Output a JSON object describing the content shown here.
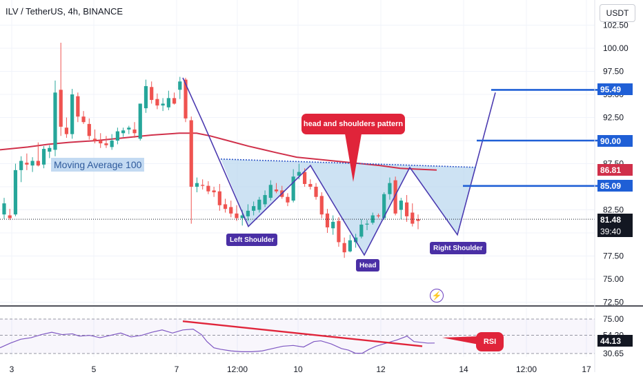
{
  "title": "ILV / TetherUS, 4h, BINANCE",
  "currency": "USDT",
  "ma_label": "Moving Average 100",
  "pattern_label": "head and shoulders pattern",
  "labels": {
    "left_shoulder": "Left Shoulder",
    "head": "Head",
    "right_shoulder": "Right Shoulder",
    "rsi": "RSI"
  },
  "price_axis": [
    "102.50",
    "100.00",
    "97.50",
    "95.00",
    "92.50",
    "90.00",
    "87.50",
    "85.00",
    "82.50",
    "80.00",
    "77.50",
    "75.00",
    "72.50"
  ],
  "rsi_axis": [
    "75.00",
    "54.20",
    "30.65"
  ],
  "time_axis": [
    "3",
    "5",
    "7",
    "12:00",
    "10",
    "12",
    "14",
    "12:00",
    "17"
  ],
  "markers": {
    "target": "95.49",
    "level_90": "90.00",
    "ma": "86.81",
    "level_85": "85.09",
    "last": "81.48",
    "countdown": "39:40",
    "rsi_last": "44.13"
  },
  "colors": {
    "up": "#26a69a",
    "down": "#ef5350",
    "ma": "#d0304a",
    "pattern": "#4b3ab0",
    "fill": "#bcd8ef",
    "level": "#1f5fd6",
    "rsi": "#7e57c2"
  },
  "chart_data": {
    "type": "candlestick",
    "title": "ILV / TetherUS, 4h, BINANCE",
    "ylim": [
      72.5,
      103.5
    ],
    "candles": [
      {
        "o": 82.0,
        "h": 83.8,
        "l": 81.5,
        "c": 83.2
      },
      {
        "o": 81.9,
        "h": 82.6,
        "l": 81.4,
        "c": 81.6
      },
      {
        "o": 82.0,
        "h": 87.5,
        "l": 81.8,
        "c": 86.8
      },
      {
        "o": 86.8,
        "h": 88.3,
        "l": 85.5,
        "c": 87.8
      },
      {
        "o": 87.6,
        "h": 88.6,
        "l": 86.8,
        "c": 87.4
      },
      {
        "o": 87.3,
        "h": 88.2,
        "l": 86.6,
        "c": 87.8
      },
      {
        "o": 87.8,
        "h": 89.8,
        "l": 87.2,
        "c": 87.3
      },
      {
        "o": 87.4,
        "h": 89.4,
        "l": 87.0,
        "c": 89.1
      },
      {
        "o": 88.8,
        "h": 89.5,
        "l": 88.1,
        "c": 89.2
      },
      {
        "o": 89.0,
        "h": 96.5,
        "l": 88.3,
        "c": 95.2
      },
      {
        "o": 95.5,
        "h": 100.6,
        "l": 90.5,
        "c": 91.5
      },
      {
        "o": 91.4,
        "h": 92.5,
        "l": 90.3,
        "c": 90.7
      },
      {
        "o": 90.7,
        "h": 95.6,
        "l": 90.2,
        "c": 95.0
      },
      {
        "o": 94.8,
        "h": 95.2,
        "l": 92.0,
        "c": 92.6
      },
      {
        "o": 92.6,
        "h": 93.2,
        "l": 91.8,
        "c": 92.0
      },
      {
        "o": 91.8,
        "h": 92.4,
        "l": 90.1,
        "c": 90.5
      },
      {
        "o": 90.2,
        "h": 91.2,
        "l": 89.7,
        "c": 90.0
      },
      {
        "o": 90.0,
        "h": 90.8,
        "l": 89.2,
        "c": 89.7
      },
      {
        "o": 89.7,
        "h": 90.5,
        "l": 89.2,
        "c": 89.5
      },
      {
        "o": 89.3,
        "h": 90.7,
        "l": 89.0,
        "c": 90.0
      },
      {
        "o": 90.0,
        "h": 91.4,
        "l": 89.6,
        "c": 91.0
      },
      {
        "o": 90.8,
        "h": 91.4,
        "l": 90.4,
        "c": 91.1
      },
      {
        "o": 91.2,
        "h": 91.6,
        "l": 90.7,
        "c": 91.4
      },
      {
        "o": 91.2,
        "h": 92.0,
        "l": 90.3,
        "c": 90.8
      },
      {
        "o": 90.2,
        "h": 94.0,
        "l": 90.0,
        "c": 94.0
      },
      {
        "o": 93.5,
        "h": 96.6,
        "l": 93.0,
        "c": 95.9
      },
      {
        "o": 95.8,
        "h": 96.4,
        "l": 94.0,
        "c": 94.4
      },
      {
        "o": 94.5,
        "h": 95.1,
        "l": 93.4,
        "c": 93.8
      },
      {
        "o": 93.8,
        "h": 94.6,
        "l": 93.2,
        "c": 94.0
      },
      {
        "o": 93.6,
        "h": 95.4,
        "l": 93.3,
        "c": 94.6
      },
      {
        "o": 94.6,
        "h": 95.2,
        "l": 93.9,
        "c": 94.0
      },
      {
        "o": 95.5,
        "h": 96.9,
        "l": 94.5,
        "c": 96.4
      },
      {
        "o": 96.6,
        "h": 96.8,
        "l": 92.0,
        "c": 92.4
      },
      {
        "o": 92.2,
        "h": 92.6,
        "l": 81.0,
        "c": 85.0
      },
      {
        "o": 85.0,
        "h": 86.0,
        "l": 84.4,
        "c": 85.4
      },
      {
        "o": 85.2,
        "h": 85.8,
        "l": 84.7,
        "c": 85.1
      },
      {
        "o": 85.1,
        "h": 85.6,
        "l": 84.2,
        "c": 84.5
      },
      {
        "o": 84.6,
        "h": 85.0,
        "l": 83.9,
        "c": 84.4
      },
      {
        "o": 84.5,
        "h": 85.3,
        "l": 82.4,
        "c": 83.0
      },
      {
        "o": 83.1,
        "h": 83.7,
        "l": 82.2,
        "c": 82.6
      },
      {
        "o": 82.8,
        "h": 83.5,
        "l": 81.7,
        "c": 82.1
      },
      {
        "o": 82.1,
        "h": 83.0,
        "l": 81.3,
        "c": 81.6
      },
      {
        "o": 81.6,
        "h": 82.5,
        "l": 80.8,
        "c": 81.9
      },
      {
        "o": 81.8,
        "h": 83.1,
        "l": 81.3,
        "c": 82.4
      },
      {
        "o": 82.4,
        "h": 83.4,
        "l": 81.9,
        "c": 82.9
      },
      {
        "o": 82.5,
        "h": 83.9,
        "l": 82.2,
        "c": 83.6
      },
      {
        "o": 83.1,
        "h": 84.6,
        "l": 82.8,
        "c": 84.1
      },
      {
        "o": 83.8,
        "h": 85.7,
        "l": 83.5,
        "c": 85.2
      },
      {
        "o": 84.7,
        "h": 85.4,
        "l": 84.3,
        "c": 84.5
      },
      {
        "o": 84.6,
        "h": 85.1,
        "l": 83.7,
        "c": 83.9
      },
      {
        "o": 83.9,
        "h": 84.3,
        "l": 82.9,
        "c": 83.3
      },
      {
        "o": 83.5,
        "h": 86.9,
        "l": 83.3,
        "c": 86.1
      },
      {
        "o": 86.2,
        "h": 87.5,
        "l": 85.8,
        "c": 86.6
      },
      {
        "o": 86.6,
        "h": 87.0,
        "l": 85.0,
        "c": 85.3
      },
      {
        "o": 85.3,
        "h": 85.8,
        "l": 84.7,
        "c": 85.0
      },
      {
        "o": 85.0,
        "h": 85.4,
        "l": 83.6,
        "c": 83.9
      },
      {
        "o": 84.0,
        "h": 84.4,
        "l": 81.6,
        "c": 82.0
      },
      {
        "o": 82.1,
        "h": 82.6,
        "l": 80.0,
        "c": 80.6
      },
      {
        "o": 80.5,
        "h": 81.9,
        "l": 79.8,
        "c": 81.2
      },
      {
        "o": 81.3,
        "h": 81.7,
        "l": 78.5,
        "c": 79.0
      },
      {
        "o": 78.9,
        "h": 79.5,
        "l": 77.3,
        "c": 77.9
      },
      {
        "o": 78.0,
        "h": 79.8,
        "l": 77.9,
        "c": 79.2
      },
      {
        "o": 79.0,
        "h": 79.9,
        "l": 78.4,
        "c": 79.5
      },
      {
        "o": 79.6,
        "h": 81.5,
        "l": 79.4,
        "c": 80.9
      },
      {
        "o": 80.9,
        "h": 81.4,
        "l": 80.3,
        "c": 81.0
      },
      {
        "o": 81.1,
        "h": 82.2,
        "l": 80.9,
        "c": 81.9
      },
      {
        "o": 81.9,
        "h": 82.1,
        "l": 81.6,
        "c": 81.8
      },
      {
        "o": 81.6,
        "h": 84.4,
        "l": 81.4,
        "c": 84.2
      },
      {
        "o": 84.2,
        "h": 86.0,
        "l": 83.6,
        "c": 85.4
      },
      {
        "o": 85.7,
        "h": 86.1,
        "l": 81.9,
        "c": 82.1
      },
      {
        "o": 82.5,
        "h": 83.8,
        "l": 81.5,
        "c": 83.5
      },
      {
        "o": 83.3,
        "h": 84.1,
        "l": 81.2,
        "c": 81.8
      },
      {
        "o": 82.2,
        "h": 83.2,
        "l": 80.7,
        "c": 81.0
      },
      {
        "o": 81.5,
        "h": 82.0,
        "l": 80.4,
        "c": 81.3
      }
    ],
    "ma100": [
      [
        0,
        89.0
      ],
      [
        40,
        89.3
      ],
      [
        70,
        89.6
      ],
      [
        100,
        89.8
      ],
      [
        140,
        90.0
      ],
      [
        180,
        90.3
      ],
      [
        220,
        90.6
      ],
      [
        260,
        90.8
      ],
      [
        285,
        90.8
      ],
      [
        305,
        90.5
      ],
      [
        330,
        90.0
      ],
      [
        360,
        89.4
      ],
      [
        400,
        88.7
      ],
      [
        430,
        88.2
      ],
      [
        470,
        87.9
      ],
      [
        510,
        87.6
      ],
      [
        550,
        87.3
      ],
      [
        580,
        87.0
      ],
      [
        605,
        86.9
      ],
      [
        633,
        86.81
      ]
    ],
    "pattern_line": [
      [
        265,
        96.8
      ],
      [
        294,
        92.0
      ],
      [
        360,
        80.7
      ],
      [
        450,
        87.3
      ],
      [
        528,
        77.6
      ],
      [
        594,
        87.1
      ],
      [
        663,
        79.8
      ],
      [
        718,
        95.2
      ]
    ],
    "neckline": [
      [
        320,
        88.0
      ],
      [
        690,
        87.1
      ]
    ],
    "fill_polygon": [
      [
        320,
        88.0
      ],
      [
        360,
        80.7
      ],
      [
        450,
        87.3
      ],
      [
        528,
        77.6
      ],
      [
        594,
        87.1
      ],
      [
        663,
        79.8
      ],
      [
        690,
        87.1
      ]
    ],
    "levels": [
      {
        "value": 95.49,
        "x0": 712,
        "x1": 868
      },
      {
        "value": 90.0,
        "x0": 691,
        "x1": 868
      },
      {
        "value": 85.09,
        "x0": 671,
        "x1": 868
      }
    ],
    "last_price": 81.48,
    "rsi": {
      "ylim": [
        28,
        80
      ],
      "levels": [
        30.65,
        54.2,
        75.0
      ],
      "last": 44.13,
      "trendline": [
        [
          265,
          72.2
        ],
        [
          612,
          40.0
        ]
      ],
      "series": [
        [
          0,
          38
        ],
        [
          15,
          44
        ],
        [
          30,
          49
        ],
        [
          45,
          51
        ],
        [
          60,
          55
        ],
        [
          75,
          58
        ],
        [
          90,
          55
        ],
        [
          105,
          56
        ],
        [
          115,
          53
        ],
        [
          130,
          54
        ],
        [
          145,
          51
        ],
        [
          160,
          54
        ],
        [
          175,
          57
        ],
        [
          190,
          52
        ],
        [
          205,
          54
        ],
        [
          220,
          58
        ],
        [
          235,
          61
        ],
        [
          250,
          57
        ],
        [
          265,
          61
        ],
        [
          280,
          62
        ],
        [
          292,
          55
        ],
        [
          300,
          46
        ],
        [
          310,
          38
        ],
        [
          320,
          36
        ],
        [
          335,
          34
        ],
        [
          350,
          33
        ],
        [
          365,
          33
        ],
        [
          380,
          34
        ],
        [
          395,
          37
        ],
        [
          410,
          40
        ],
        [
          425,
          41
        ],
        [
          440,
          39
        ],
        [
          455,
          46
        ],
        [
          465,
          47
        ],
        [
          480,
          43
        ],
        [
          495,
          37
        ],
        [
          505,
          35
        ],
        [
          515,
          31
        ],
        [
          525,
          31
        ],
        [
          535,
          36
        ],
        [
          545,
          40
        ],
        [
          560,
          44
        ],
        [
          575,
          48
        ],
        [
          590,
          53
        ],
        [
          600,
          46
        ],
        [
          610,
          45
        ],
        [
          620,
          44
        ],
        [
          630,
          44.13
        ]
      ]
    }
  }
}
